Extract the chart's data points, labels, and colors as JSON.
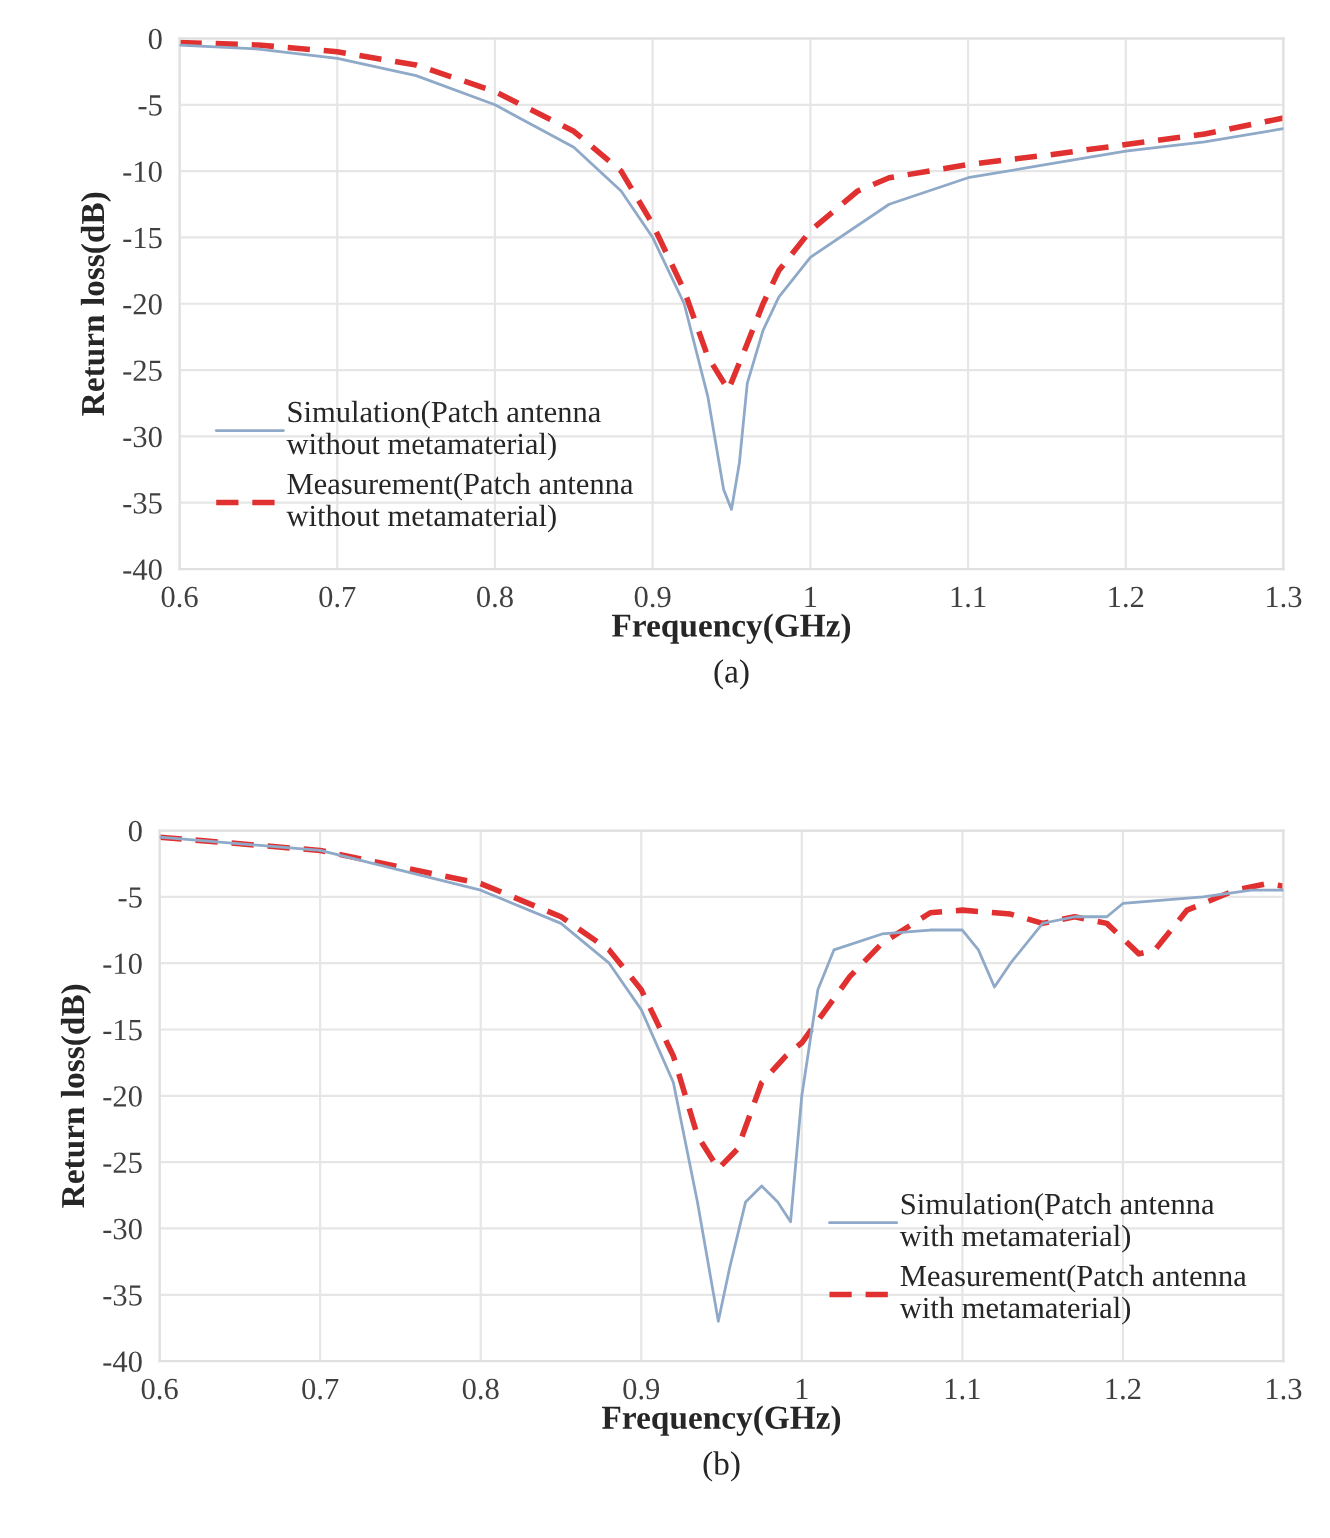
{
  "chart_data": [
    {
      "type": "line",
      "xlabel": "Frequency(GHz)",
      "ylabel": "Return loss(dB)",
      "annotations": [
        "(a)"
      ],
      "xlim": [
        0.6,
        1.3
      ],
      "xticks": [
        0.6,
        0.7,
        0.8,
        0.9,
        1,
        1.1,
        1.2,
        1.3
      ],
      "ylim": [
        -40,
        0
      ],
      "yticks": [
        -40,
        -35,
        -30,
        -25,
        -20,
        -15,
        -10,
        -5,
        0
      ],
      "grid": true,
      "legend": "bottom left",
      "series": [
        {
          "name": "Simulation(Patch antenna\nwithout metamaterial)",
          "color": "#8fa9c8",
          "line_style": "solid",
          "x": [
            0.6,
            0.65,
            0.7,
            0.75,
            0.8,
            0.85,
            0.88,
            0.9,
            0.92,
            0.935,
            0.945,
            0.95,
            0.955,
            0.96,
            0.97,
            0.98,
            1.0,
            1.05,
            1.1,
            1.15,
            1.2,
            1.25,
            1.3
          ],
          "values": [
            -0.5,
            -0.8,
            -1.5,
            -2.8,
            -5,
            -8.2,
            -11.5,
            -15,
            -20,
            -27,
            -34,
            -35.5,
            -32,
            -26,
            -22,
            -19.5,
            -16.5,
            -12.5,
            -10.5,
            -9.5,
            -8.5,
            -7.8,
            -6.8
          ]
        },
        {
          "name": "Measurement(Patch antenna\nwithout metamaterial)",
          "color": "#e03030",
          "line_style": "dashed",
          "x": [
            0.6,
            0.65,
            0.7,
            0.75,
            0.8,
            0.85,
            0.88,
            0.9,
            0.92,
            0.935,
            0.948,
            0.96,
            0.97,
            0.98,
            1.0,
            1.03,
            1.05,
            1.1,
            1.15,
            1.2,
            1.25,
            1.3
          ],
          "values": [
            -0.3,
            -0.5,
            -1,
            -2,
            -4,
            -7,
            -10,
            -14,
            -19,
            -24,
            -26.5,
            -23,
            -20,
            -17.5,
            -14.5,
            -11.5,
            -10.5,
            -9.5,
            -8.8,
            -8,
            -7.2,
            -6
          ]
        }
      ]
    },
    {
      "type": "line",
      "xlabel": "Frequency(GHz)",
      "ylabel": "Return loss(dB)",
      "annotations": [
        "(b)"
      ],
      "xlim": [
        0.6,
        1.3
      ],
      "xticks": [
        0.6,
        0.7,
        0.8,
        0.9,
        1,
        1.1,
        1.2,
        1.3
      ],
      "ylim": [
        -40,
        0
      ],
      "yticks": [
        -40,
        -35,
        -30,
        -25,
        -20,
        -15,
        -10,
        -5,
        0
      ],
      "grid": true,
      "legend": "bottom right",
      "series": [
        {
          "name": "Simulation(Patch antenna\nwith metamaterial)",
          "color": "#8fa9c8",
          "line_style": "solid",
          "x": [
            0.6,
            0.7,
            0.8,
            0.85,
            0.88,
            0.9,
            0.92,
            0.935,
            0.948,
            0.955,
            0.965,
            0.975,
            0.985,
            0.993,
            1.0,
            1.01,
            1.02,
            1.05,
            1.08,
            1.1,
            1.11,
            1.12,
            1.13,
            1.15,
            1.17,
            1.19,
            1.2,
            1.25,
            1.28,
            1.3
          ],
          "values": [
            -0.5,
            -1.5,
            -4.5,
            -7,
            -10,
            -13.5,
            -19,
            -28,
            -37,
            -33,
            -28,
            -26.8,
            -28,
            -29.5,
            -20,
            -12,
            -9,
            -7.8,
            -7.5,
            -7.5,
            -9,
            -11.8,
            -10,
            -7,
            -6.5,
            -6.5,
            -5.5,
            -5,
            -4.5,
            -4.5
          ]
        },
        {
          "name": "Measurement(Patch antenna\nwith metamaterial)",
          "color": "#e03030",
          "line_style": "dashed",
          "x": [
            0.6,
            0.7,
            0.8,
            0.85,
            0.88,
            0.9,
            0.92,
            0.935,
            0.948,
            0.96,
            0.975,
            0.99,
            1.0,
            1.03,
            1.05,
            1.08,
            1.1,
            1.13,
            1.15,
            1.17,
            1.19,
            1.21,
            1.22,
            1.24,
            1.27,
            1.29,
            1.3
          ],
          "values": [
            -0.5,
            -1.5,
            -4,
            -6.5,
            -9,
            -12,
            -17,
            -23,
            -25.5,
            -24,
            -19,
            -17,
            -16,
            -11,
            -8.5,
            -6.2,
            -6,
            -6.3,
            -7,
            -6.5,
            -7,
            -9.3,
            -9,
            -6,
            -4.5,
            -4,
            -4.2
          ]
        }
      ]
    }
  ]
}
